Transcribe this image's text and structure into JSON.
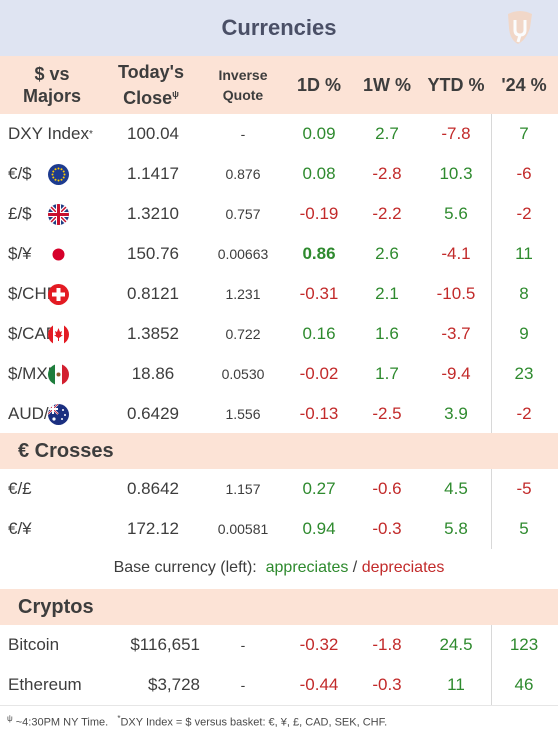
{
  "title": "Currencies",
  "logo": "tuning-fork-logo",
  "colors": {
    "positive": "#2e8a2e",
    "negative": "#c22a2a",
    "header_bg": "#fce3d6",
    "title_bg": "#dfe4f2"
  },
  "headers": {
    "pair_line1": "$ vs",
    "pair_line2": "Majors",
    "close_line1": "Today's",
    "close_line2": "Close",
    "close_mark": "ψ",
    "inverse_line1": "Inverse",
    "inverse_line2": "Quote",
    "d1": "1D %",
    "w1": "1W %",
    "ytd": "YTD %",
    "y24": "'24 %"
  },
  "majors": [
    {
      "pair": "DXY Index",
      "mark": "*",
      "flag": "",
      "close": "100.04",
      "inverse": "-",
      "d1": "0.09",
      "w1": "2.7",
      "ytd": "-7.8",
      "y24": "7"
    },
    {
      "pair": "€/$",
      "flag": "eu-flag-icon",
      "close": "1.1417",
      "inverse": "0.876",
      "d1": "0.08",
      "w1": "-2.8",
      "ytd": "10.3",
      "y24": "-6"
    },
    {
      "pair": "£/$",
      "flag": "uk-flag-icon",
      "close": "1.3210",
      "inverse": "0.757",
      "d1": "-0.19",
      "w1": "-2.2",
      "ytd": "5.6",
      "y24": "-2"
    },
    {
      "pair": "$/¥",
      "flag": "japan-flag-icon",
      "close": "150.76",
      "inverse": "0.00663",
      "d1": "0.86",
      "d1_bold": true,
      "w1": "2.6",
      "ytd": "-4.1",
      "y24": "11"
    },
    {
      "pair": "$/CHF",
      "flag": "switzerland-flag-icon",
      "close": "0.8121",
      "inverse": "1.231",
      "d1": "-0.31",
      "w1": "2.1",
      "ytd": "-10.5",
      "y24": "8"
    },
    {
      "pair": "$/CAD",
      "flag": "canada-flag-icon",
      "close": "1.3852",
      "inverse": "0.722",
      "d1": "0.16",
      "w1": "1.6",
      "ytd": "-3.7",
      "y24": "9"
    },
    {
      "pair": "$/MXN",
      "flag": "mexico-flag-icon",
      "close": "18.86",
      "inverse": "0.0530",
      "d1": "-0.02",
      "w1": "1.7",
      "ytd": "-9.4",
      "y24": "23"
    },
    {
      "pair": "AUD/$",
      "flag": "australia-flag-icon",
      "close": "0.6429",
      "inverse": "1.556",
      "d1": "-0.13",
      "w1": "-2.5",
      "ytd": "3.9",
      "y24": "-2"
    }
  ],
  "crosses_title": "€ Crosses",
  "crosses": [
    {
      "pair": "€/£",
      "close": "0.8642",
      "inverse": "1.157",
      "d1": "0.27",
      "w1": "-0.6",
      "ytd": "4.5",
      "y24": "-5"
    },
    {
      "pair": "€/¥",
      "close": "172.12",
      "inverse": "0.00581",
      "d1": "0.94",
      "w1": "-0.3",
      "ytd": "5.8",
      "y24": "5"
    }
  ],
  "legend": {
    "prefix": "Base currency (left):",
    "up": "appreciates",
    "sep": "/",
    "down": "depreciates"
  },
  "cryptos_title": "Cryptos",
  "cryptos": [
    {
      "pair": "Bitcoin",
      "close": "$116,651",
      "inverse": "-",
      "d1": "-0.32",
      "w1": "-1.8",
      "ytd": "24.5",
      "y24": "123"
    },
    {
      "pair": "Ethereum",
      "close": "$3,728",
      "inverse": "-",
      "d1": "-0.44",
      "w1": "-0.3",
      "ytd": "11",
      "y24": "46"
    }
  ],
  "footnote": {
    "mark1": "ψ",
    "text1": " ~4:30PM NY Time.",
    "mark2": "*",
    "text2": "DXY Index = $ versus basket: €, ¥, £, CAD, SEK, CHF."
  }
}
